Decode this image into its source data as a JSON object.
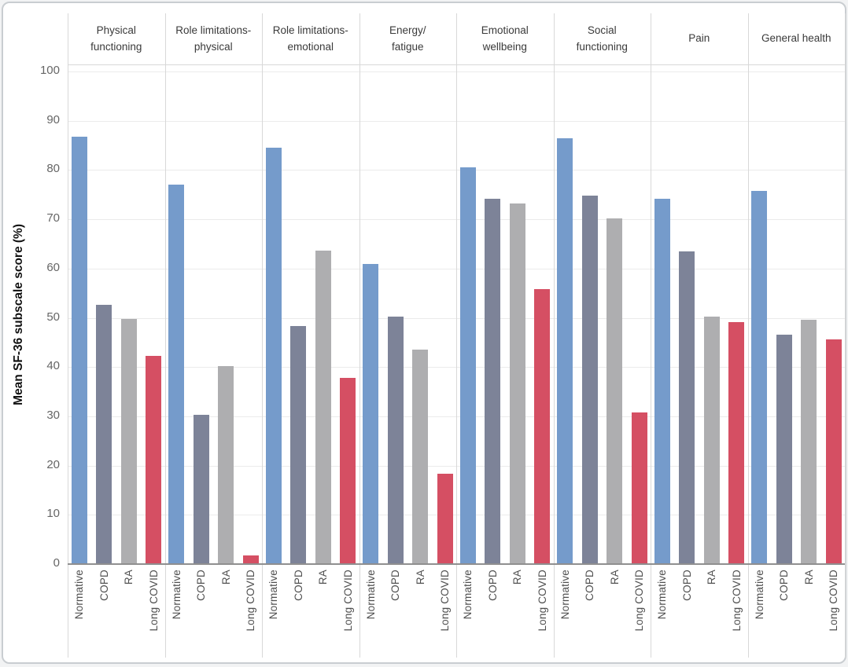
{
  "chart_data": {
    "type": "bar",
    "title": "",
    "ylabel": "Mean SF-36 subscale score (%)",
    "ylim": [
      0,
      100
    ],
    "yticks": [
      0,
      10,
      20,
      30,
      40,
      50,
      60,
      70,
      80,
      90,
      100
    ],
    "grid": true,
    "legend_position": "none (category labels repeated under each panel)",
    "categories": [
      "Normative",
      "COPD",
      "RA",
      "Long COVID"
    ],
    "series_colors": [
      "#759bcb",
      "#7d8398",
      "#aeaeb0",
      "#d54f63"
    ],
    "panels": [
      {
        "title": "Physical\nfunctioning",
        "values": [
          86.8,
          52.7,
          49.7,
          42.2
        ]
      },
      {
        "title": "Role limitations-\nphysical",
        "values": [
          77.0,
          30.3,
          40.2,
          1.8
        ]
      },
      {
        "title": "Role limitations-\nemotional",
        "values": [
          84.5,
          48.3,
          63.7,
          37.8
        ]
      },
      {
        "title": "Energy/\nfatigue",
        "values": [
          61.0,
          50.2,
          43.6,
          18.3
        ]
      },
      {
        "title": "Emotional\nwellbeing",
        "values": [
          80.5,
          74.2,
          73.2,
          55.9
        ]
      },
      {
        "title": "Social\nfunctioning",
        "values": [
          86.5,
          74.8,
          70.2,
          30.8
        ]
      },
      {
        "title": "Pain",
        "values": [
          74.2,
          63.5,
          50.3,
          49.2
        ]
      },
      {
        "title": "General health",
        "values": [
          75.7,
          46.5,
          49.6,
          45.6
        ]
      }
    ]
  }
}
